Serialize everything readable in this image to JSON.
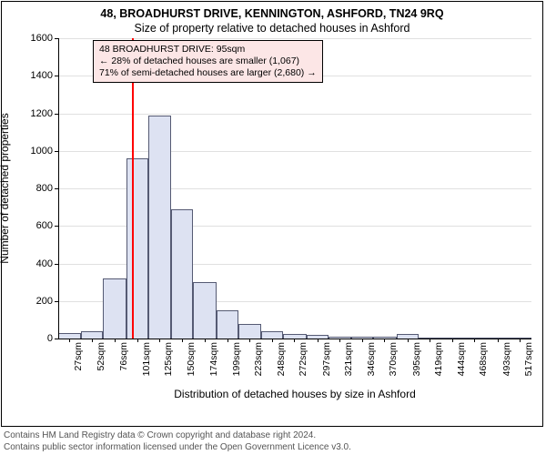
{
  "title_line1": "48, BROADHURST DRIVE, KENNINGTON, ASHFORD, TN24 9RQ",
  "title_line2": "Size of property relative to detached houses in Ashford",
  "ylabel": "Number of detached properties",
  "xlabel": "Distribution of detached houses by size in Ashford",
  "footer_line1": "Contains HM Land Registry data © Crown copyright and database right 2024.",
  "footer_line2": "Contains public sector information licensed under the Open Government Licence v3.0.",
  "info_box": {
    "bg": "#fce6e6",
    "line1": "48 BROADHURST DRIVE: 95sqm",
    "line2": "← 28% of detached houses are smaller (1,067)",
    "line3": "71% of semi-detached houses are larger (2,680) →"
  },
  "chart": {
    "type": "histogram",
    "ylim": [
      0,
      1600
    ],
    "yticks": [
      0,
      200,
      400,
      600,
      800,
      1000,
      1200,
      1400,
      1600
    ],
    "xtick_labels": [
      "27sqm",
      "52sqm",
      "76sqm",
      "101sqm",
      "125sqm",
      "150sqm",
      "174sqm",
      "199sqm",
      "223sqm",
      "248sqm",
      "272sqm",
      "297sqm",
      "321sqm",
      "346sqm",
      "370sqm",
      "395sqm",
      "419sqm",
      "444sqm",
      "468sqm",
      "493sqm",
      "517sqm"
    ],
    "xtick_values": [
      27,
      52,
      76,
      101,
      125,
      150,
      174,
      199,
      223,
      248,
      272,
      297,
      321,
      346,
      370,
      395,
      419,
      444,
      468,
      493,
      517
    ],
    "xlim": [
      15,
      530
    ],
    "bar_color": "#dde2f2",
    "bar_border": "#555a73",
    "marker_value": 95,
    "marker_color": "#ff0000",
    "grid_color": "#e0e0e0",
    "background_color": "#ffffff",
    "bars": [
      {
        "x0": 15,
        "x1": 40,
        "count": 30
      },
      {
        "x0": 40,
        "x1": 64,
        "count": 40
      },
      {
        "x0": 64,
        "x1": 89,
        "count": 320
      },
      {
        "x0": 89,
        "x1": 113,
        "count": 960
      },
      {
        "x0": 113,
        "x1": 138,
        "count": 1190
      },
      {
        "x0": 138,
        "x1": 162,
        "count": 690
      },
      {
        "x0": 162,
        "x1": 187,
        "count": 300
      },
      {
        "x0": 187,
        "x1": 211,
        "count": 150
      },
      {
        "x0": 211,
        "x1": 236,
        "count": 80
      },
      {
        "x0": 236,
        "x1": 260,
        "count": 40
      },
      {
        "x0": 260,
        "x1": 285,
        "count": 25
      },
      {
        "x0": 285,
        "x1": 309,
        "count": 20
      },
      {
        "x0": 309,
        "x1": 334,
        "count": 12
      },
      {
        "x0": 334,
        "x1": 358,
        "count": 10
      },
      {
        "x0": 358,
        "x1": 383,
        "count": 8
      },
      {
        "x0": 383,
        "x1": 407,
        "count": 25
      },
      {
        "x0": 407,
        "x1": 432,
        "count": 5
      },
      {
        "x0": 432,
        "x1": 456,
        "count": 4
      },
      {
        "x0": 456,
        "x1": 481,
        "count": 3
      },
      {
        "x0": 481,
        "x1": 505,
        "count": 3
      },
      {
        "x0": 505,
        "x1": 530,
        "count": 3
      }
    ]
  }
}
